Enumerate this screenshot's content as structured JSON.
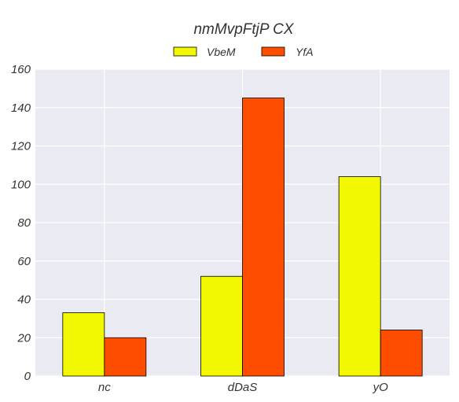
{
  "chart_data": {
    "type": "bar",
    "title": "nmMvpFtjP CX",
    "xlabel": "",
    "ylabel": "",
    "categories": [
      "nc",
      "dDaS",
      "yO"
    ],
    "series": [
      {
        "name": "VbeM",
        "values": [
          33,
          52,
          104
        ],
        "color": "#f2f702"
      },
      {
        "name": "YfA",
        "values": [
          20,
          145,
          24
        ],
        "color": "#ff4d00"
      }
    ],
    "ylim": [
      0,
      160
    ],
    "yticks": [
      0,
      20,
      40,
      60,
      80,
      100,
      120,
      140,
      160
    ],
    "grid": true,
    "legend_position": "top-center",
    "background_color": "#eaeaf2"
  }
}
